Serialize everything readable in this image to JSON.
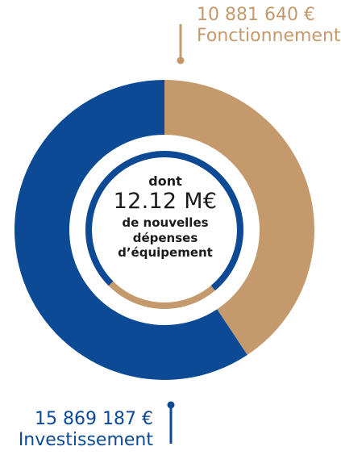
{
  "colors": {
    "fonctionnement": "#c49a6c",
    "investissement": "#0d4a96",
    "inner_ring_track": "#c49a6c",
    "inner_ring_value": "#0d4a96",
    "background": "#ffffff"
  },
  "chart_data": {
    "type": "pie",
    "series": [
      {
        "name": "Fonctionnement",
        "value": 10881640,
        "value_label": "10 881 640 €",
        "color": "#c49a6c"
      },
      {
        "name": "Investissement",
        "value": 15869187,
        "value_label": "15 869 187 €",
        "color": "#0d4a96"
      }
    ],
    "inner_ring": {
      "intro": "dont",
      "value": 12.12,
      "value_label": "12.12 M€",
      "description_lines": [
        "de nouvelles",
        "dépenses",
        "d’équipement"
      ],
      "fraction_of_investissement": 0.764
    }
  }
}
